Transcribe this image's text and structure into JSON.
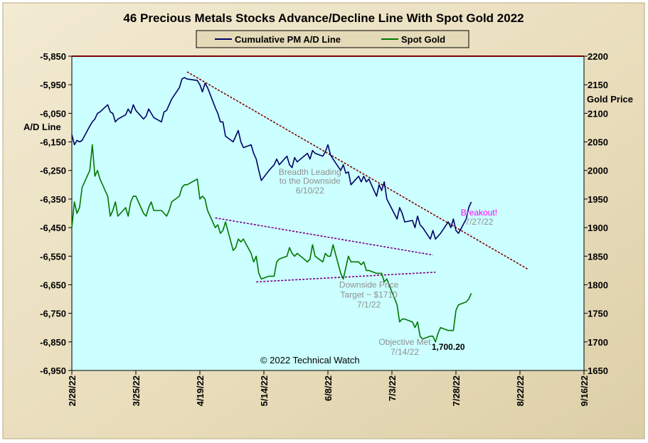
{
  "chart_data": {
    "type": "line",
    "title": "46 Precious Metals Stocks Advance/Decline Line With Spot Gold 2022",
    "ylabel_left": "A/D Line",
    "ylabel_right": "Gold Price",
    "ylim_left": [
      -6950,
      -5850
    ],
    "ylim_right": [
      1650,
      2200
    ],
    "yticks_left": [
      -5850,
      -5950,
      -6050,
      -6150,
      -6250,
      -6350,
      -6450,
      -6550,
      -6650,
      -6750,
      -6850,
      -6950
    ],
    "yticks_right": [
      2200,
      2150,
      2100,
      2050,
      2000,
      1950,
      1900,
      1850,
      1800,
      1750,
      1700,
      1650
    ],
    "ytick_labels_left": [
      "-5,850",
      "-5,950",
      "-6,050",
      "-6,150",
      "-6,250",
      "-6,350",
      "-6,450",
      "-6,550",
      "-6,650",
      "-6,750",
      "-6,850",
      "-6,950"
    ],
    "ytick_labels_right": [
      "2200",
      "2150",
      "2100",
      "2050",
      "2000",
      "1950",
      "1900",
      "1850",
      "1800",
      "1750",
      "1700",
      "1650"
    ],
    "xlim": [
      "2022-02-28",
      "2022-09-16"
    ],
    "xticks": [
      "2022-02-28",
      "2022-03-25",
      "2022-04-19",
      "2022-05-14",
      "2022-06-08",
      "2022-07-03",
      "2022-07-28",
      "2022-08-22",
      "2022-09-16"
    ],
    "xtick_labels": [
      "2/28/22",
      "3/25/22",
      "4/19/22",
      "5/14/22",
      "6/8/22",
      "7/3/22",
      "7/28/22",
      "8/22/22",
      "9/16/22"
    ],
    "legend_position": "top-center",
    "colors": {
      "ad_line": "#000066",
      "gold": "#007700",
      "trend": "#800000",
      "trend_purple": "#800080",
      "plot_bg": "#ccffff",
      "frame_bg": "#ece3c5",
      "breakout": "#ff00ff",
      "annotation_gray": "#909090"
    },
    "series": [
      {
        "name": "Cumulative PM A/D Line",
        "axis": "left",
        "points": [
          [
            "2022-02-28",
            -6125
          ],
          [
            "2022-03-01",
            -6160
          ],
          [
            "2022-03-02",
            -6145
          ],
          [
            "2022-03-03",
            -6150
          ],
          [
            "2022-03-04",
            -6145
          ],
          [
            "2022-03-07",
            -6095
          ],
          [
            "2022-03-08",
            -6080
          ],
          [
            "2022-03-09",
            -6070
          ],
          [
            "2022-03-10",
            -6050
          ],
          [
            "2022-03-11",
            -6045
          ],
          [
            "2022-03-14",
            -6020
          ],
          [
            "2022-03-15",
            -6045
          ],
          [
            "2022-03-16",
            -6050
          ],
          [
            "2022-03-17",
            -6080
          ],
          [
            "2022-03-18",
            -6070
          ],
          [
            "2022-03-21",
            -6055
          ],
          [
            "2022-03-22",
            -6035
          ],
          [
            "2022-03-23",
            -6050
          ],
          [
            "2022-03-24",
            -6020
          ],
          [
            "2022-03-25",
            -6040
          ],
          [
            "2022-03-28",
            -6070
          ],
          [
            "2022-03-29",
            -6060
          ],
          [
            "2022-03-30",
            -6035
          ],
          [
            "2022-03-31",
            -6050
          ],
          [
            "2022-04-01",
            -6065
          ],
          [
            "2022-04-04",
            -6080
          ],
          [
            "2022-04-05",
            -6045
          ],
          [
            "2022-04-06",
            -6040
          ],
          [
            "2022-04-07",
            -6020
          ],
          [
            "2022-04-08",
            -6000
          ],
          [
            "2022-04-11",
            -5960
          ],
          [
            "2022-04-12",
            -5930
          ],
          [
            "2022-04-13",
            -5925
          ],
          [
            "2022-04-14",
            -5930
          ],
          [
            "2022-04-18",
            -5935
          ],
          [
            "2022-04-19",
            -5950
          ],
          [
            "2022-04-20",
            -5975
          ],
          [
            "2022-04-21",
            -5945
          ],
          [
            "2022-04-22",
            -5960
          ],
          [
            "2022-04-25",
            -6030
          ],
          [
            "2022-04-26",
            -6050
          ],
          [
            "2022-04-27",
            -6080
          ],
          [
            "2022-04-28",
            -6080
          ],
          [
            "2022-04-29",
            -6130
          ],
          [
            "2022-05-02",
            -6150
          ],
          [
            "2022-05-03",
            -6130
          ],
          [
            "2022-05-04",
            -6110
          ],
          [
            "2022-05-05",
            -6150
          ],
          [
            "2022-05-06",
            -6170
          ],
          [
            "2022-05-09",
            -6160
          ],
          [
            "2022-05-10",
            -6190
          ],
          [
            "2022-05-11",
            -6210
          ],
          [
            "2022-05-12",
            -6250
          ],
          [
            "2022-05-13",
            -6285
          ],
          [
            "2022-05-16",
            -6250
          ],
          [
            "2022-05-17",
            -6240
          ],
          [
            "2022-05-18",
            -6230
          ],
          [
            "2022-05-19",
            -6210
          ],
          [
            "2022-05-20",
            -6230
          ],
          [
            "2022-05-23",
            -6200
          ],
          [
            "2022-05-24",
            -6230
          ],
          [
            "2022-05-25",
            -6240
          ],
          [
            "2022-05-26",
            -6205
          ],
          [
            "2022-05-27",
            -6220
          ],
          [
            "2022-05-31",
            -6190
          ],
          [
            "2022-06-01",
            -6210
          ],
          [
            "2022-06-02",
            -6180
          ],
          [
            "2022-06-03",
            -6190
          ],
          [
            "2022-06-06",
            -6200
          ],
          [
            "2022-06-07",
            -6185
          ],
          [
            "2022-06-08",
            -6160
          ],
          [
            "2022-06-09",
            -6195
          ],
          [
            "2022-06-10",
            -6210
          ],
          [
            "2022-06-13",
            -6250
          ],
          [
            "2022-06-14",
            -6230
          ],
          [
            "2022-06-15",
            -6260
          ],
          [
            "2022-06-16",
            -6255
          ],
          [
            "2022-06-17",
            -6300
          ],
          [
            "2022-06-20",
            -6270
          ],
          [
            "2022-06-21",
            -6290
          ],
          [
            "2022-06-22",
            -6270
          ],
          [
            "2022-06-23",
            -6290
          ],
          [
            "2022-06-24",
            -6280
          ],
          [
            "2022-06-27",
            -6340
          ],
          [
            "2022-06-28",
            -6300
          ],
          [
            "2022-06-29",
            -6320
          ],
          [
            "2022-06-30",
            -6290
          ],
          [
            "2022-07-01",
            -6350
          ],
          [
            "2022-07-05",
            -6420
          ],
          [
            "2022-07-06",
            -6380
          ],
          [
            "2022-07-07",
            -6400
          ],
          [
            "2022-07-08",
            -6430
          ],
          [
            "2022-07-11",
            -6425
          ],
          [
            "2022-07-12",
            -6450
          ],
          [
            "2022-07-13",
            -6410
          ],
          [
            "2022-07-14",
            -6440
          ],
          [
            "2022-07-15",
            -6450
          ],
          [
            "2022-07-18",
            -6490
          ],
          [
            "2022-07-19",
            -6460
          ],
          [
            "2022-07-20",
            -6490
          ],
          [
            "2022-07-21",
            -6480
          ],
          [
            "2022-07-22",
            -6470
          ],
          [
            "2022-07-25",
            -6430
          ],
          [
            "2022-07-26",
            -6450
          ],
          [
            "2022-07-27",
            -6420
          ],
          [
            "2022-07-28",
            -6460
          ],
          [
            "2022-07-29",
            -6470
          ],
          [
            "2022-08-01",
            -6420
          ],
          [
            "2022-08-02",
            -6380
          ],
          [
            "2022-08-03",
            -6360
          ]
        ]
      },
      {
        "name": "Spot Gold",
        "axis": "right",
        "points": [
          [
            "2022-02-28",
            1900
          ],
          [
            "2022-03-01",
            1945
          ],
          [
            "2022-03-02",
            1925
          ],
          [
            "2022-03-03",
            1935
          ],
          [
            "2022-03-04",
            1970
          ],
          [
            "2022-03-07",
            2000
          ],
          [
            "2022-03-08",
            2045
          ],
          [
            "2022-03-09",
            1990
          ],
          [
            "2022-03-10",
            2000
          ],
          [
            "2022-03-11",
            1985
          ],
          [
            "2022-03-14",
            1955
          ],
          [
            "2022-03-15",
            1920
          ],
          [
            "2022-03-16",
            1930
          ],
          [
            "2022-03-17",
            1945
          ],
          [
            "2022-03-18",
            1920
          ],
          [
            "2022-03-21",
            1935
          ],
          [
            "2022-03-22",
            1920
          ],
          [
            "2022-03-23",
            1945
          ],
          [
            "2022-03-24",
            1955
          ],
          [
            "2022-03-25",
            1955
          ],
          [
            "2022-03-28",
            1925
          ],
          [
            "2022-03-29",
            1920
          ],
          [
            "2022-03-30",
            1935
          ],
          [
            "2022-03-31",
            1945
          ],
          [
            "2022-04-01",
            1930
          ],
          [
            "2022-04-04",
            1930
          ],
          [
            "2022-04-05",
            1925
          ],
          [
            "2022-04-06",
            1920
          ],
          [
            "2022-04-07",
            1930
          ],
          [
            "2022-04-08",
            1945
          ],
          [
            "2022-04-11",
            1955
          ],
          [
            "2022-04-12",
            1970
          ],
          [
            "2022-04-13",
            1975
          ],
          [
            "2022-04-14",
            1975
          ],
          [
            "2022-04-18",
            1985
          ],
          [
            "2022-04-19",
            1950
          ],
          [
            "2022-04-20",
            1955
          ],
          [
            "2022-04-21",
            1950
          ],
          [
            "2022-04-22",
            1930
          ],
          [
            "2022-04-25",
            1900
          ],
          [
            "2022-04-26",
            1905
          ],
          [
            "2022-04-27",
            1890
          ],
          [
            "2022-04-28",
            1895
          ],
          [
            "2022-04-29",
            1910
          ],
          [
            "2022-05-02",
            1860
          ],
          [
            "2022-05-03",
            1865
          ],
          [
            "2022-05-04",
            1880
          ],
          [
            "2022-05-05",
            1875
          ],
          [
            "2022-05-06",
            1880
          ],
          [
            "2022-05-09",
            1855
          ],
          [
            "2022-05-10",
            1840
          ],
          [
            "2022-05-11",
            1850
          ],
          [
            "2022-05-12",
            1820
          ],
          [
            "2022-05-13",
            1810
          ],
          [
            "2022-05-16",
            1815
          ],
          [
            "2022-05-17",
            1815
          ],
          [
            "2022-05-18",
            1815
          ],
          [
            "2022-05-19",
            1840
          ],
          [
            "2022-05-20",
            1845
          ],
          [
            "2022-05-23",
            1850
          ],
          [
            "2022-05-24",
            1865
          ],
          [
            "2022-05-25",
            1855
          ],
          [
            "2022-05-26",
            1850
          ],
          [
            "2022-05-27",
            1855
          ],
          [
            "2022-05-31",
            1840
          ],
          [
            "2022-06-01",
            1845
          ],
          [
            "2022-06-02",
            1870
          ],
          [
            "2022-06-03",
            1850
          ],
          [
            "2022-06-06",
            1840
          ],
          [
            "2022-06-07",
            1855
          ],
          [
            "2022-06-08",
            1850
          ],
          [
            "2022-06-09",
            1850
          ],
          [
            "2022-06-10",
            1870
          ],
          [
            "2022-06-13",
            1820
          ],
          [
            "2022-06-14",
            1810
          ],
          [
            "2022-06-15",
            1830
          ],
          [
            "2022-06-16",
            1850
          ],
          [
            "2022-06-17",
            1840
          ],
          [
            "2022-06-20",
            1840
          ],
          [
            "2022-06-21",
            1835
          ],
          [
            "2022-06-22",
            1840
          ],
          [
            "2022-06-23",
            1825
          ],
          [
            "2022-06-24",
            1825
          ],
          [
            "2022-06-27",
            1820
          ],
          [
            "2022-06-28",
            1820
          ],
          [
            "2022-06-29",
            1820
          ],
          [
            "2022-06-30",
            1805
          ],
          [
            "2022-07-01",
            1810
          ],
          [
            "2022-07-05",
            1765
          ],
          [
            "2022-07-06",
            1735
          ],
          [
            "2022-07-07",
            1740
          ],
          [
            "2022-07-08",
            1740
          ],
          [
            "2022-07-11",
            1735
          ],
          [
            "2022-07-12",
            1725
          ],
          [
            "2022-07-13",
            1735
          ],
          [
            "2022-07-14",
            1710
          ],
          [
            "2022-07-15",
            1705
          ],
          [
            "2022-07-18",
            1710
          ],
          [
            "2022-07-19",
            1710
          ],
          [
            "2022-07-20",
            1700
          ],
          [
            "2022-07-21",
            1715
          ],
          [
            "2022-07-22",
            1725
          ],
          [
            "2022-07-25",
            1720
          ],
          [
            "2022-07-26",
            1720
          ],
          [
            "2022-07-27",
            1720
          ],
          [
            "2022-07-28",
            1755
          ],
          [
            "2022-07-29",
            1765
          ],
          [
            "2022-08-01",
            1770
          ],
          [
            "2022-08-02",
            1775
          ],
          [
            "2022-08-03",
            1785
          ]
        ]
      }
    ],
    "trendlines": [
      {
        "axis": "left",
        "from": [
          "2022-04-14",
          -5905
        ],
        "to": [
          "2022-08-25",
          -6595
        ],
        "color": "trend"
      },
      {
        "axis": "right",
        "from": [
          "2022-04-25",
          1917
        ],
        "to": [
          "2022-07-19",
          1852
        ],
        "color": "trend_purple"
      },
      {
        "axis": "right",
        "from": [
          "2022-05-11",
          1805
        ],
        "to": [
          "2022-07-20",
          1822
        ],
        "color": "trend_purple"
      }
    ],
    "annotations": [
      {
        "text": "Breadth Leading",
        "x": "2022-06-01",
        "y": -6265,
        "axis": "left",
        "color": "annotation_gray"
      },
      {
        "text": "to the Downside",
        "x": "2022-06-01",
        "y": -6297,
        "axis": "left",
        "color": "annotation_gray"
      },
      {
        "text": "6/10/22",
        "x": "2022-06-01",
        "y": -6330,
        "axis": "left",
        "color": "annotation_gray"
      },
      {
        "text": "Breakout!",
        "x": "2022-08-06",
        "y": -6407,
        "axis": "left",
        "color": "breakout"
      },
      {
        "text": "7/27/22",
        "x": "2022-08-06",
        "y": -6440,
        "axis": "left",
        "color": "annotation_gray"
      },
      {
        "text": "Downside Price",
        "x": "2022-06-24",
        "y": -6660,
        "axis": "left",
        "color": "annotation_gray"
      },
      {
        "text": "Target ~ $1710",
        "x": "2022-06-24",
        "y": -6695,
        "axis": "left",
        "color": "annotation_gray"
      },
      {
        "text": "7/1/22",
        "x": "2022-06-24",
        "y": -6730,
        "axis": "left",
        "color": "annotation_gray"
      },
      {
        "text": "Objective Met",
        "x": "2022-07-08",
        "y": -6860,
        "axis": "left",
        "color": "annotation_gray"
      },
      {
        "text": "7/14/22",
        "x": "2022-07-08",
        "y": -6895,
        "axis": "left",
        "color": "annotation_gray"
      },
      {
        "text": "1,700.20",
        "x": "2022-07-25",
        "y": -6878,
        "axis": "left",
        "color": "#000000"
      },
      {
        "text": "© 2022 Technical Watch",
        "x": "2022-06-01",
        "y": -6925,
        "axis": "left",
        "color": "#000000"
      }
    ]
  }
}
